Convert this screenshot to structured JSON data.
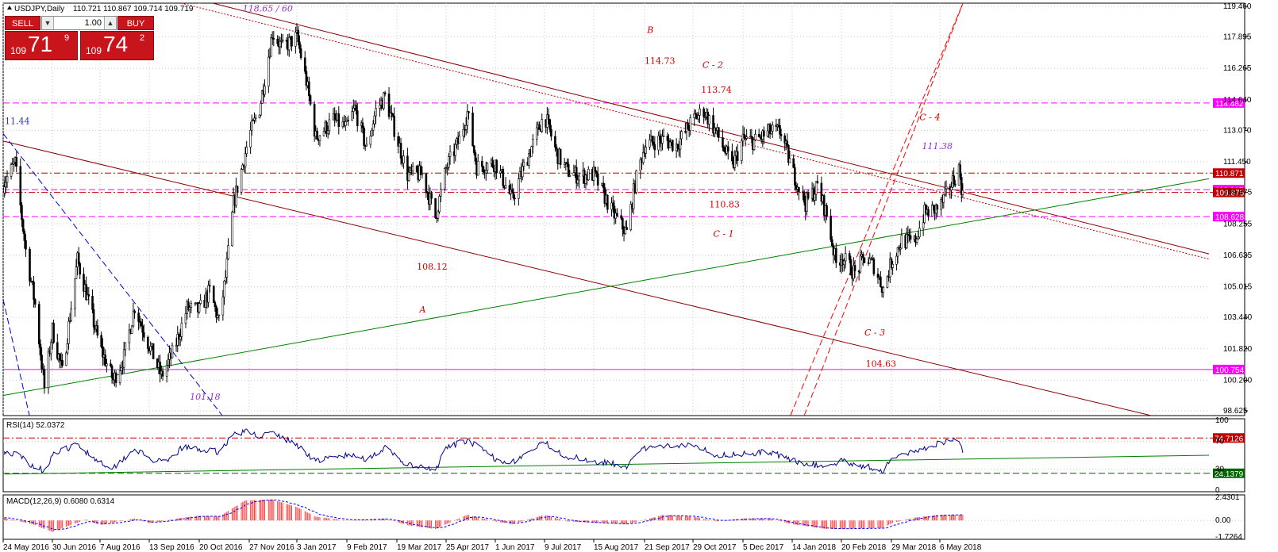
{
  "header": {
    "symbol": "USDJPY,Daily",
    "ohlc": "110.721 110.867 109.714 109.719"
  },
  "trade_panel": {
    "sell_label": "SELL",
    "buy_label": "BUY",
    "lot_value": "1.00",
    "sell_price": {
      "prefix": "109",
      "big": "71",
      "sup": "9"
    },
    "buy_price": {
      "prefix": "109",
      "big": "74",
      "sup": "2"
    }
  },
  "colors": {
    "candle": "#000000",
    "resistance_line": "#8b0000",
    "support_line": "#008000",
    "level_magenta": "#ff00ff",
    "level_red": "#c00000",
    "rsi_line": "#00008b",
    "macd_hist": "#ff4040",
    "macd_signal": "#0000ff",
    "wave_label": "#cc0000",
    "target_label": "#9933cc",
    "frame": "#000000"
  },
  "chart_data": [
    {
      "type": "candlestick",
      "symbol": "USDJPY",
      "timeframe": "Daily",
      "ylim": [
        98.625,
        119.46
      ],
      "price_ticks": [
        "119.460",
        "117.895",
        "116.265",
        "114.640",
        "113.070",
        "111.450",
        "109.875",
        "108.255",
        "106.635",
        "105.015",
        "103.440",
        "101.820",
        "100.200",
        "98.625"
      ],
      "x_dates": [
        "24 May 2016",
        "30 Jun 2016",
        "7 Aug 2016",
        "13 Sep 2016",
        "20 Oct 2016",
        "27 Nov 2016",
        "3 Jan 2017",
        "9 Feb 2017",
        "19 Mar 2017",
        "25 Apr 2017",
        "1 Jun 2017",
        "9 Jul 2017",
        "15 Aug 2017",
        "21 Sep 2017",
        "29 Oct 2017",
        "5 Dec 2017",
        "14 Jan 2018",
        "20 Feb 2018",
        "29 Mar 2018",
        "6 May 2018"
      ],
      "price_path": [
        [
          "24 May 2016",
          110.3
        ],
        [
          "2 Jun 2016",
          111.4
        ],
        [
          "10 Jun 2016",
          106.9
        ],
        [
          "17 Jun 2016",
          104.1
        ],
        [
          "24 Jun 2016",
          99.8
        ],
        [
          "30 Jun 2016",
          102.8
        ],
        [
          "8 Jul 2016",
          100.6
        ],
        [
          "20 Jul 2016",
          106.4
        ],
        [
          "27 Jul 2016",
          104.7
        ],
        [
          "7 Aug 2016",
          101.9
        ],
        [
          "17 Aug 2016",
          100.2
        ],
        [
          "25 Aug 2016",
          101.4
        ],
        [
          "2 Sep 2016",
          104.0
        ],
        [
          "13 Sep 2016",
          102.0
        ],
        [
          "22 Sep 2016",
          100.4
        ],
        [
          "1 Oct 2016",
          101.7
        ],
        [
          "11 Oct 2016",
          103.9
        ],
        [
          "20 Oct 2016",
          103.8
        ],
        [
          "28 Oct 2016",
          104.8
        ],
        [
          "4 Nov 2016",
          103.2
        ],
        [
          "9 Nov 2016",
          105.5
        ],
        [
          "15 Nov 2016",
          109.3
        ],
        [
          "22 Nov 2016",
          111.3
        ],
        [
          "27 Nov 2016",
          112.8
        ],
        [
          "5 Dec 2016",
          114.2
        ],
        [
          "15 Dec 2016",
          118.1
        ],
        [
          "23 Dec 2016",
          117.3
        ],
        [
          "3 Jan 2017",
          117.9
        ],
        [
          "10 Jan 2017",
          115.6
        ],
        [
          "17 Jan 2017",
          112.7
        ],
        [
          "30 Jan 2017",
          113.6
        ],
        [
          "9 Feb 2017",
          113.2
        ],
        [
          "15 Feb 2017",
          114.2
        ],
        [
          "24 Feb 2017",
          112.1
        ],
        [
          "3 Mar 2017",
          114.1
        ],
        [
          "10 Mar 2017",
          114.8
        ],
        [
          "19 Mar 2017",
          112.7
        ],
        [
          "27 Mar 2017",
          110.8
        ],
        [
          "7 Apr 2017",
          110.8
        ],
        [
          "17 Apr 2017",
          108.6
        ],
        [
          "25 Apr 2017",
          111.1
        ],
        [
          "5 May 2017",
          112.6
        ],
        [
          "11 May 2017",
          114.0
        ],
        [
          "18 May 2017",
          111.2
        ],
        [
          "1 Jun 2017",
          111.4
        ],
        [
          "14 Jun 2017",
          109.5
        ],
        [
          "23 Jun 2017",
          111.2
        ],
        [
          "9 Jul 2017",
          113.9
        ],
        [
          "18 Jul 2017",
          111.9
        ],
        [
          "26 Jul 2017",
          111.0
        ],
        [
          "4 Aug 2017",
          110.7
        ],
        [
          "15 Aug 2017",
          110.8
        ],
        [
          "29 Aug 2017",
          108.8
        ],
        [
          "8 Sep 2017",
          107.8
        ],
        [
          "14 Sep 2017",
          110.3
        ],
        [
          "21 Sep 2017",
          112.3
        ],
        [
          "29 Sep 2017",
          112.5
        ],
        [
          "6 Oct 2017",
          112.6
        ],
        [
          "16 Oct 2017",
          112.3
        ],
        [
          "29 Oct 2017",
          113.6
        ],
        [
          "6 Nov 2017",
          114.1
        ],
        [
          "15 Nov 2017",
          113.0
        ],
        [
          "27 Nov 2017",
          111.2
        ],
        [
          "5 Dec 2017",
          112.6
        ],
        [
          "14 Dec 2017",
          112.5
        ],
        [
          "27 Dec 2017",
          113.0
        ],
        [
          "5 Jan 2018",
          113.0
        ],
        [
          "14 Jan 2018",
          111.0
        ],
        [
          "24 Jan 2018",
          109.3
        ],
        [
          "2 Feb 2018",
          110.2
        ],
        [
          "9 Feb 2018",
          108.7
        ],
        [
          "16 Feb 2018",
          106.2
        ],
        [
          "20 Feb 2018",
          106.6
        ],
        [
          "2 Mar 2018",
          105.7
        ],
        [
          "9 Mar 2018",
          106.5
        ],
        [
          "16 Mar 2018",
          106.1
        ],
        [
          "23 Mar 2018",
          104.9
        ],
        [
          "29 Mar 2018",
          106.3
        ],
        [
          "6 Apr 2018",
          107.4
        ],
        [
          "16 Apr 2018",
          107.3
        ],
        [
          "24 Apr 2018",
          108.8
        ],
        [
          "6 May 2018",
          109.1
        ],
        [
          "15 May 2018",
          110.3
        ],
        [
          "21 May 2018",
          111.1
        ],
        [
          "24 May 2018",
          109.7
        ]
      ],
      "horizontal_levels": [
        {
          "label": "114.482",
          "value": 114.482,
          "style": "dashed",
          "color": "#ff00ff"
        },
        {
          "label": "110.871",
          "value": 110.871,
          "style": "dash-dot",
          "color": "#c00000"
        },
        {
          "label": "110.017",
          "value": 110.017,
          "style": "dashed",
          "color": "#ff00ff"
        },
        {
          "label": "109.875",
          "value": 109.875,
          "style": "dash-dot",
          "color": "#c00000"
        },
        {
          "label": "108.628",
          "value": 108.628,
          "style": "dashed",
          "color": "#ff00ff"
        },
        {
          "label": "100.754",
          "value": 100.754,
          "style": "solid",
          "color": "#ff00ff"
        }
      ],
      "trendlines": [
        {
          "points": [
            [
              "6 Dec 2016",
              119.0
            ],
            [
              "24 May 2018",
              109.9
            ]
          ],
          "style": "solid",
          "color": "#8b0000"
        },
        {
          "points": [
            [
              "6 Dec 2016",
              118.6
            ],
            [
              "24 May 2018",
              109.6
            ]
          ],
          "style": "dotted",
          "color": "#c00000"
        },
        {
          "points": [
            [
              "24 May 2016",
              112.5
            ],
            [
              "24 May 2018",
              100.7
            ]
          ],
          "style": "solid",
          "color": "#8b0000"
        },
        {
          "points": [
            [
              "24 Jun 2016",
              99.8
            ],
            [
              "24 May 2018",
              108.3
            ]
          ],
          "style": "solid",
          "color": "#008000"
        },
        {
          "points": [
            [
              "14 Jan 2018",
              98.6
            ],
            [
              "24 May 2018",
              119.6
            ]
          ],
          "style": "dashed",
          "color": "#ff0000"
        },
        {
          "points": [
            [
              "18 Feb 2018",
              103.0
            ],
            [
              "24 May 2018",
              119.6
            ]
          ],
          "style": "dashed",
          "color": "#ff0000"
        },
        {
          "points": [
            [
              "1 Jun 2016",
              112.2
            ],
            [
              "4 Nov 2016",
              98.6
            ]
          ],
          "style": "dashed",
          "color": "#0000cd"
        },
        {
          "points": [
            [
              "24 May 2016",
              104.0
            ],
            [
              "12 Jun 2016",
              98.6
            ]
          ],
          "style": "dashed",
          "color": "#0000cd"
        }
      ],
      "annotations": [
        {
          "text": "11.44",
          "date": "24 May 2016",
          "price": 113.4,
          "color": "#3333cc",
          "italic": false
        },
        {
          "text": "118.65 / 60",
          "date": "22 Nov 2016",
          "price": 119.2,
          "color": "#9933cc",
          "italic": true
        },
        {
          "text": "101.18",
          "date": "13 Oct 2016",
          "price": 99.2,
          "color": "#9933cc",
          "italic": true
        },
        {
          "text": "B",
          "date": "23 Sep 2017",
          "price": 118.1,
          "color": "#cc0000",
          "italic": true
        },
        {
          "text": "114.73",
          "date": "21 Sep 2017",
          "price": 116.5,
          "color": "#cc0000",
          "italic": false
        },
        {
          "text": "C - 2",
          "date": "5 Nov 2017",
          "price": 116.3,
          "color": "#cc0000",
          "italic": true
        },
        {
          "text": "113.74",
          "date": "4 Nov 2017",
          "price": 115.0,
          "color": "#cc0000",
          "italic": false
        },
        {
          "text": "C - 4",
          "date": "20 Apr 2018",
          "price": 113.6,
          "color": "#cc0000",
          "italic": true
        },
        {
          "text": "111.38",
          "date": "22 Apr 2018",
          "price": 112.1,
          "color": "#9933cc",
          "italic": true
        },
        {
          "text": "110.83",
          "date": "10 Nov 2017",
          "price": 109.1,
          "color": "#cc0000",
          "italic": false
        },
        {
          "text": "C - 1",
          "date": "13 Nov 2017",
          "price": 107.6,
          "color": "#cc0000",
          "italic": true
        },
        {
          "text": "108.12",
          "date": "3 Apr 2017",
          "price": 105.9,
          "color": "#cc0000",
          "italic": false
        },
        {
          "text": "A",
          "date": "5 Apr 2017",
          "price": 103.7,
          "color": "#cc0000",
          "italic": true
        },
        {
          "text": "C - 3",
          "date": "9 Mar 2018",
          "price": 102.5,
          "color": "#cc0000",
          "italic": true
        },
        {
          "text": "104.63",
          "date": "10 Mar 2018",
          "price": 100.9,
          "color": "#cc0000",
          "italic": false
        }
      ]
    },
    {
      "type": "line",
      "name": "RSI(14)",
      "header": "RSI(14) 52.0372",
      "ylim": [
        0,
        100
      ],
      "ticks": [
        "100",
        "70",
        "30",
        "0"
      ],
      "levels": [
        {
          "label": "74.7126",
          "value": 74.7126,
          "style": "dash-dot",
          "color": "#c00000"
        },
        {
          "label": "24.1379",
          "value": 24.1379,
          "style": "dashed",
          "color": "#006400"
        }
      ],
      "trendline": {
        "points": [
          [
            "24 May 2016",
            23.0
          ],
          [
            "24 May 2018",
            46.0
          ]
        ],
        "color": "#008000"
      },
      "path": [
        [
          "24 May 2016",
          55
        ],
        [
          "5 Jun 2016",
          50
        ],
        [
          "15 Jun 2016",
          35
        ],
        [
          "24 Jun 2016",
          28
        ],
        [
          "30 Jun 2016",
          50
        ],
        [
          "12 Jul 2016",
          60
        ],
        [
          "20 Jul 2016",
          65
        ],
        [
          "7 Aug 2016",
          40
        ],
        [
          "17 Aug 2016",
          32
        ],
        [
          "2 Sep 2016",
          60
        ],
        [
          "13 Sep 2016",
          45
        ],
        [
          "25 Sep 2016",
          38
        ],
        [
          "8 Oct 2016",
          62
        ],
        [
          "20 Oct 2016",
          58
        ],
        [
          "4 Nov 2016",
          55
        ],
        [
          "15 Nov 2016",
          80
        ],
        [
          "24 Nov 2016",
          84
        ],
        [
          "5 Dec 2016",
          78
        ],
        [
          "15 Dec 2016",
          82
        ],
        [
          "3 Jan 2017",
          65
        ],
        [
          "17 Jan 2017",
          42
        ],
        [
          "9 Feb 2017",
          50
        ],
        [
          "24 Feb 2017",
          45
        ],
        [
          "10 Mar 2017",
          60
        ],
        [
          "27 Mar 2017",
          36
        ],
        [
          "17 Apr 2017",
          28
        ],
        [
          "25 Apr 2017",
          60
        ],
        [
          "11 May 2017",
          72
        ],
        [
          "1 Jun 2017",
          45
        ],
        [
          "14 Jun 2017",
          40
        ],
        [
          "9 Jul 2017",
          68
        ],
        [
          "26 Jul 2017",
          48
        ],
        [
          "8 Sep 2017",
          35
        ],
        [
          "21 Sep 2017",
          60
        ],
        [
          "6 Oct 2017",
          62
        ],
        [
          "29 Oct 2017",
          67
        ],
        [
          "15 Nov 2017",
          50
        ],
        [
          "5 Dec 2017",
          52
        ],
        [
          "27 Dec 2017",
          55
        ],
        [
          "14 Jan 2018",
          42
        ],
        [
          "9 Feb 2018",
          33
        ],
        [
          "20 Feb 2018",
          42
        ],
        [
          "23 Mar 2018",
          28
        ],
        [
          "29 Mar 2018",
          45
        ],
        [
          "16 Apr 2018",
          55
        ],
        [
          "6 May 2018",
          68
        ],
        [
          "15 May 2018",
          72
        ],
        [
          "21 May 2018",
          74
        ],
        [
          "24 May 2018",
          52
        ]
      ]
    },
    {
      "type": "bar",
      "name": "MACD(12,26,9)",
      "header": "MACD(12,26,9) 0.6080 0.6314",
      "ylim": [
        -1.7264,
        2.4301
      ],
      "ticks": [
        "2.4301",
        "0.00",
        "-1.7264"
      ],
      "histogram_path": [
        [
          "24 May 2016",
          0.3
        ],
        [
          "15 Jun 2016",
          -0.4
        ],
        [
          "30 Jun 2016",
          -1.2
        ],
        [
          "12 Jul 2016",
          -0.6
        ],
        [
          "27 Jul 2016",
          0.1
        ],
        [
          "7 Aug 2016",
          -0.5
        ],
        [
          "2 Sep 2016",
          0.2
        ],
        [
          "13 Sep 2016",
          -0.3
        ],
        [
          "8 Oct 2016",
          0.3
        ],
        [
          "20 Oct 2016",
          0.5
        ],
        [
          "4 Nov 2016",
          0.4
        ],
        [
          "24 Nov 2016",
          2.1
        ],
        [
          "15 Dec 2016",
          2.2
        ],
        [
          "3 Jan 2017",
          1.4
        ],
        [
          "17 Jan 2017",
          0.4
        ],
        [
          "9 Feb 2017",
          0.0
        ],
        [
          "10 Mar 2017",
          0.2
        ],
        [
          "27 Mar 2017",
          -0.5
        ],
        [
          "17 Apr 2017",
          -0.9
        ],
        [
          "11 May 2017",
          0.6
        ],
        [
          "1 Jun 2017",
          -0.1
        ],
        [
          "14 Jun 2017",
          -0.4
        ],
        [
          "9 Jul 2017",
          0.6
        ],
        [
          "26 Jul 2017",
          -0.1
        ],
        [
          "8 Sep 2017",
          -0.4
        ],
        [
          "6 Oct 2017",
          0.6
        ],
        [
          "29 Oct 2017",
          0.4
        ],
        [
          "15 Nov 2017",
          -0.1
        ],
        [
          "5 Dec 2017",
          0.2
        ],
        [
          "27 Dec 2017",
          0.2
        ],
        [
          "14 Jan 2018",
          -0.4
        ],
        [
          "9 Feb 2018",
          -0.9
        ],
        [
          "23 Mar 2018",
          -0.8
        ],
        [
          "29 Mar 2018",
          -0.3
        ],
        [
          "16 Apr 2018",
          0.3
        ],
        [
          "6 May 2018",
          0.6
        ],
        [
          "24 May 2018",
          0.6
        ]
      ]
    }
  ]
}
